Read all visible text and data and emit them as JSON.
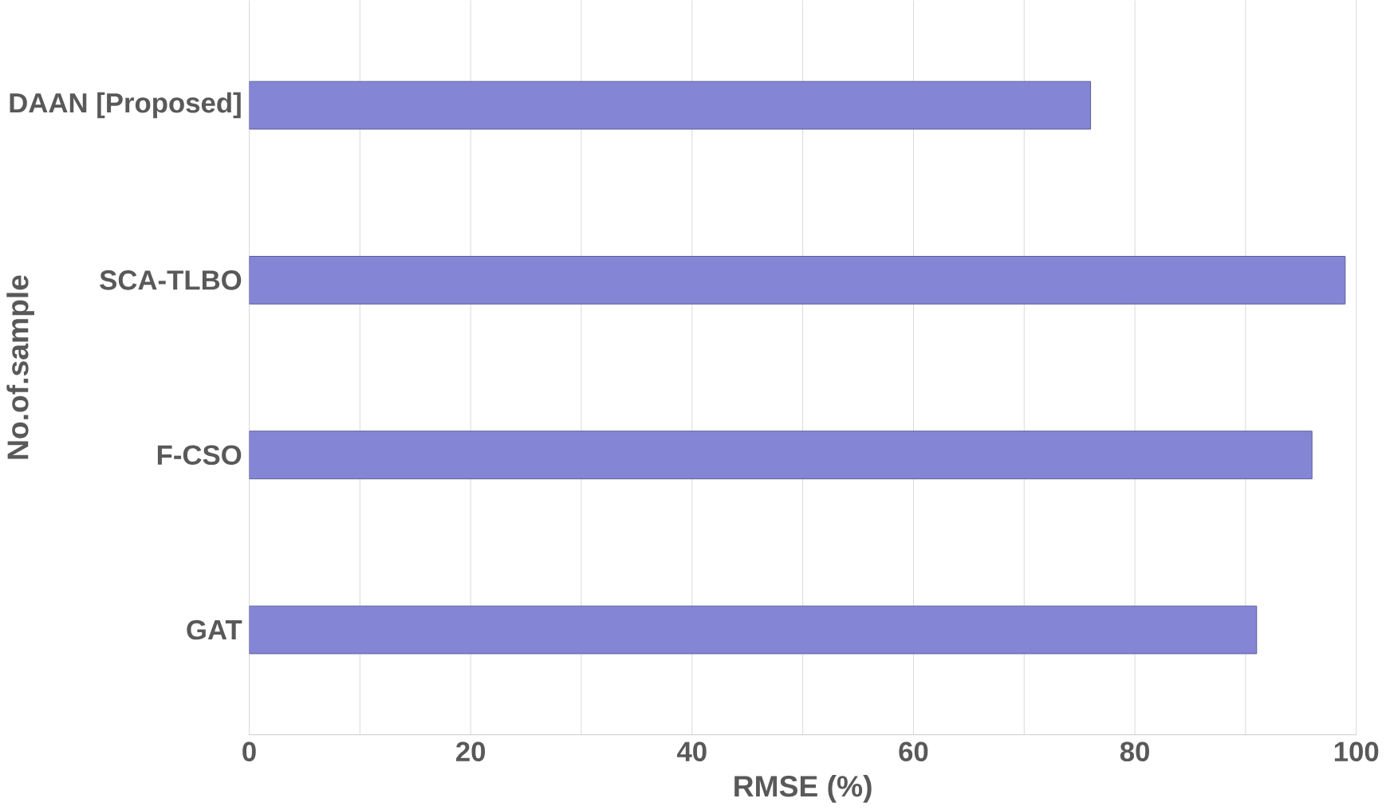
{
  "chart_data": {
    "type": "bar",
    "orientation": "horizontal",
    "categories": [
      "DAAN [Proposed]",
      "SCA-TLBO",
      "F-CSO",
      "GAT"
    ],
    "values": [
      76,
      99,
      96,
      91
    ],
    "color": "#8585d6",
    "xlabel": "RMSE (%)",
    "ylabel": "No.of.sample",
    "xlim": [
      0,
      100
    ],
    "xticks": [
      0,
      20,
      40,
      60,
      80,
      100
    ],
    "grid": "x"
  }
}
